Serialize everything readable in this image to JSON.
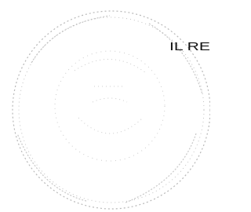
{
  "stamp": {
    "text": "IL RE"
  }
}
